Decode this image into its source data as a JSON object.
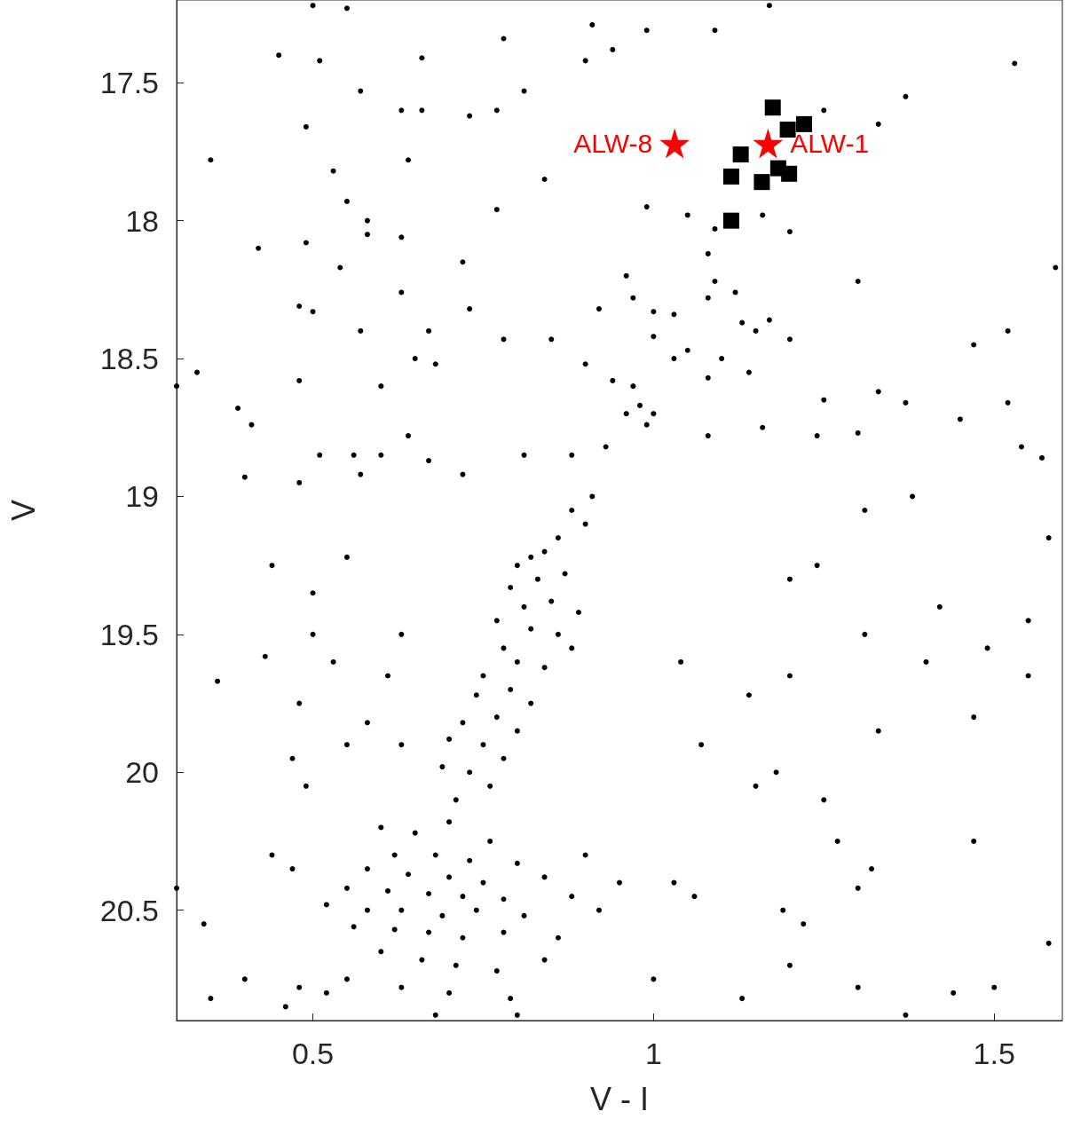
{
  "chart_data": {
    "type": "scatter",
    "xlabel": "V - I",
    "ylabel": "V",
    "xlim": [
      0.3,
      1.6
    ],
    "xticks": [
      0.5,
      1,
      1.5
    ],
    "ylim": [
      20.9,
      17.2
    ],
    "yticks": [
      17.5,
      18,
      18.5,
      19,
      19.5,
      20,
      20.5
    ],
    "grid": false,
    "legend": false,
    "series": [
      {
        "color": "#000000",
        "marker": "circle",
        "x": [
          0.5,
          0.55,
          0.45,
          0.51,
          0.66,
          0.78,
          0.91,
          0.99,
          1.09,
          1.17,
          0.57,
          0.63,
          0.66,
          0.73,
          0.77,
          0.81,
          0.9,
          0.94,
          1.37,
          1.53,
          0.35,
          0.49,
          0.53,
          0.64,
          0.84,
          1.04,
          1.25,
          1.33,
          0.55,
          0.58,
          0.77,
          0.99,
          1.05,
          1.09,
          1.16,
          1.2,
          0.58,
          0.63,
          0.42,
          0.49,
          0.54,
          0.72,
          0.96,
          1.08,
          1.09,
          1.12,
          1.3,
          1.59,
          0.48,
          0.5,
          0.63,
          0.73,
          0.92,
          0.97,
          1.0,
          1.03,
          1.13,
          1.08,
          1.15,
          1.17,
          0.57,
          0.67,
          0.78,
          0.85,
          1.0,
          1.05,
          1.1,
          1.03,
          1.2,
          1.47,
          1.52,
          0.3,
          0.33,
          0.48,
          0.6,
          0.65,
          0.68,
          0.9,
          0.94,
          0.97,
          0.98,
          0.96,
          1.0,
          0.99,
          1.08,
          1.14,
          1.25,
          1.33,
          1.37,
          1.45,
          1.52,
          0.39,
          0.41,
          0.56,
          0.57,
          0.6,
          0.64,
          0.67,
          0.72,
          0.81,
          0.88,
          0.93,
          1.08,
          1.16,
          1.24,
          1.3,
          1.54,
          1.57,
          0.4,
          0.51,
          0.48,
          0.88,
          0.9,
          0.91,
          0.86,
          0.84,
          0.82,
          0.8,
          0.83,
          0.87,
          0.79,
          0.81,
          0.85,
          0.89,
          0.77,
          0.82,
          0.86,
          0.78,
          0.8,
          0.84,
          0.88,
          0.75,
          0.79,
          0.74,
          0.82,
          0.77,
          0.72,
          0.8,
          0.75,
          0.7,
          0.78,
          0.73,
          0.69,
          0.76,
          0.71,
          1.24,
          1.2,
          1.31,
          1.38,
          1.58,
          1.42,
          1.31,
          1.49,
          1.55,
          1.14,
          1.04,
          1.2,
          1.33,
          1.47,
          1.07,
          1.15,
          1.18,
          1.25,
          1.55,
          1.4,
          0.44,
          0.55,
          0.5,
          0.5,
          0.53,
          0.43,
          0.63,
          0.61,
          0.36,
          0.48,
          0.58,
          0.55,
          0.47,
          0.63,
          0.49,
          0.6,
          0.65,
          0.7,
          0.76,
          0.62,
          0.68,
          0.73,
          0.8,
          0.58,
          0.64,
          0.7,
          0.75,
          0.84,
          0.55,
          0.61,
          0.67,
          0.72,
          0.78,
          0.88,
          0.52,
          0.58,
          0.63,
          0.69,
          0.74,
          0.81,
          0.92,
          0.56,
          0.62,
          0.67,
          0.72,
          0.78,
          0.86,
          0.6,
          0.66,
          0.71,
          0.77,
          0.84,
          0.55,
          0.63,
          0.7,
          0.79,
          0.48,
          0.52,
          0.68,
          0.8,
          0.46,
          0.35,
          0.4,
          0.3,
          0.34,
          0.44,
          0.47,
          0.9,
          0.95,
          1.03,
          1.06,
          1.19,
          1.22,
          1.3,
          1.32,
          1.47,
          1.27,
          1.2,
          1.3,
          1.44,
          1.5,
          1.37,
          1.58,
          1.13,
          1.0
        ],
        "values": [
          17.22,
          17.23,
          17.4,
          17.42,
          17.41,
          17.34,
          17.29,
          17.31,
          17.31,
          17.22,
          17.53,
          17.6,
          17.6,
          17.62,
          17.6,
          17.53,
          17.42,
          17.38,
          17.55,
          17.43,
          17.78,
          17.66,
          17.82,
          17.78,
          17.85,
          null,
          17.6,
          17.65,
          17.93,
          18.0,
          17.96,
          17.95,
          17.98,
          18.03,
          17.98,
          18.04,
          18.05,
          18.06,
          18.1,
          18.08,
          18.17,
          18.15,
          18.2,
          18.12,
          18.22,
          18.26,
          18.22,
          18.17,
          18.31,
          18.33,
          18.26,
          18.32,
          18.32,
          18.28,
          18.33,
          18.34,
          18.37,
          18.28,
          18.4,
          18.36,
          18.4,
          18.4,
          18.43,
          18.43,
          18.42,
          18.47,
          18.5,
          18.5,
          18.43,
          18.45,
          18.4,
          18.6,
          18.55,
          18.58,
          18.6,
          18.5,
          18.52,
          18.52,
          18.58,
          18.6,
          18.67,
          18.7,
          18.7,
          18.74,
          18.57,
          18.55,
          18.65,
          18.62,
          18.66,
          18.72,
          18.66,
          18.68,
          18.74,
          18.85,
          18.92,
          18.85,
          18.78,
          18.87,
          18.92,
          18.85,
          18.85,
          18.82,
          18.78,
          18.75,
          18.78,
          18.77,
          18.82,
          18.86,
          18.93,
          18.85,
          18.95,
          19.05,
          19.1,
          19.0,
          19.15,
          19.2,
          19.22,
          19.25,
          19.3,
          19.28,
          19.33,
          19.4,
          19.38,
          19.42,
          19.45,
          19.48,
          19.5,
          19.55,
          19.6,
          19.62,
          19.55,
          19.65,
          19.7,
          19.72,
          19.75,
          19.8,
          19.82,
          19.85,
          19.9,
          19.88,
          19.95,
          20.0,
          19.98,
          20.05,
          20.1,
          19.25,
          19.3,
          19.05,
          19.0,
          19.15,
          19.4,
          19.5,
          19.55,
          19.45,
          19.72,
          19.6,
          19.65,
          19.85,
          19.8,
          19.9,
          20.05,
          20.0,
          20.1,
          19.65,
          19.6,
          19.25,
          19.22,
          19.35,
          19.5,
          19.6,
          19.58,
          19.5,
          19.65,
          19.67,
          19.75,
          19.82,
          19.9,
          19.95,
          19.9,
          20.05,
          20.2,
          20.22,
          20.18,
          20.25,
          20.3,
          20.3,
          20.32,
          20.33,
          20.35,
          20.37,
          20.38,
          20.4,
          20.38,
          20.42,
          20.43,
          20.44,
          20.45,
          20.46,
          20.45,
          20.48,
          20.5,
          20.5,
          20.52,
          20.5,
          20.52,
          20.5,
          20.56,
          20.57,
          20.58,
          20.6,
          20.58,
          20.6,
          20.65,
          20.68,
          20.7,
          20.72,
          20.68,
          20.75,
          20.78,
          20.8,
          20.82,
          20.78,
          20.8,
          20.88,
          20.88,
          20.85,
          20.82,
          20.75,
          20.42,
          20.55,
          20.3,
          20.35,
          20.3,
          20.4,
          20.4,
          20.45,
          20.5,
          20.55,
          20.42,
          20.35,
          20.25,
          20.25,
          20.7,
          20.78,
          20.8,
          20.78,
          20.88,
          20.62,
          20.82,
          20.75
        ]
      },
      {
        "color": "#000000",
        "marker": "square",
        "x": [
          1.175,
          1.221,
          1.197,
          1.128,
          1.114,
          1.159,
          1.183,
          1.199,
          1.114
        ],
        "values": [
          17.59,
          17.65,
          17.67,
          17.76,
          17.84,
          17.86,
          17.81,
          17.83,
          18.0
        ]
      },
      {
        "name": "ALW-8",
        "color": "#ff0000",
        "marker": "star",
        "x": [
          1.031
        ],
        "values": [
          17.72
        ]
      },
      {
        "name": "ALW-1",
        "color": "#ff0000",
        "marker": "star",
        "x": [
          1.168
        ],
        "values": [
          17.72
        ]
      }
    ]
  }
}
